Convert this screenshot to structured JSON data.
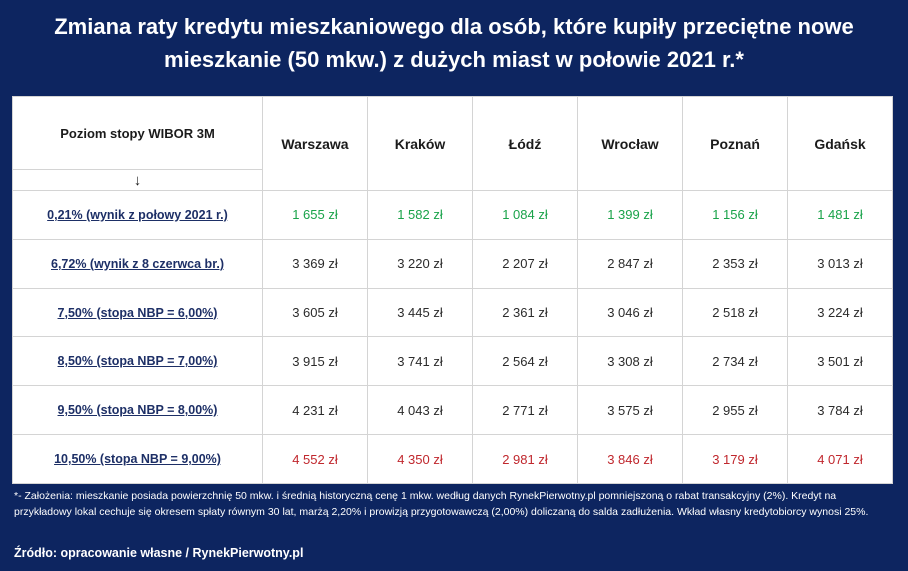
{
  "title": {
    "line1": "Zmiana raty kredytu mieszkaniowego dla osób, które kupiły przeciętne nowe",
    "line2": "mieszkanie (50 mkw.) z dużych miast w połowie 2021 r.*"
  },
  "table": {
    "row_header": "Poziom stopy WIBOR 3M",
    "row_header_arrow": "↓",
    "columns": [
      "Warszawa",
      "Kraków",
      "Łódź",
      "Wrocław",
      "Poznań",
      "Gdańsk"
    ],
    "rows": [
      {
        "label": "0,21% (wynik z połowy 2021 r.)",
        "values": [
          "1 655 zł",
          "1 582 zł",
          "1 084 zł",
          "1 399 zł",
          "1 156 zł",
          "1 481 zł"
        ],
        "color": "#1aa34a"
      },
      {
        "label": "6,72% (wynik z 8 czerwca br.)",
        "values": [
          "3 369 zł",
          "3 220 zł",
          "2 207 zł",
          "2 847 zł",
          "2 353 zł",
          "3 013 zł"
        ],
        "color": "#2b2b2b"
      },
      {
        "label": "7,50% (stopa NBP = 6,00%)",
        "values": [
          "3 605 zł",
          "3 445 zł",
          "2 361 zł",
          "3 046 zł",
          "2 518 zł",
          "3 224 zł"
        ],
        "color": "#2b2b2b"
      },
      {
        "label": "8,50% (stopa NBP = 7,00%)",
        "values": [
          "3 915 zł",
          "3 741 zł",
          "2 564 zł",
          "3 308 zł",
          "2 734 zł",
          "3 501 zł"
        ],
        "color": "#2b2b2b"
      },
      {
        "label": "9,50% (stopa NBP = 8,00%)",
        "values": [
          "4 231 zł",
          "4 043 zł",
          "2 771 zł",
          "3 575 zł",
          "2 955 zł",
          "3 784 zł"
        ],
        "color": "#2b2b2b"
      },
      {
        "label": "10,50% (stopa NBP = 9,00%)",
        "values": [
          "4 552 zł",
          "4 350 zł",
          "2 981 zł",
          "3 846 zł",
          "3 179 zł",
          "4 071 zł"
        ],
        "color": "#c0272d"
      }
    ]
  },
  "footnote": "*- Założenia: mieszkanie posiada powierzchnię 50 mkw. i średnią historyczną cenę 1 mkw. według danych RynekPierwotny.pl pomniejszoną o rabat transakcyjny (2%). Kredyt na przykładowy lokal cechuje się okresem spłaty równym 30 lat, marżą 2,20% i prowizją przygotowawczą (2,00%) doliczaną do salda zadłużenia. Wkład własny kredytobiorcy wynosi 25%.",
  "source": "Źródło: opracowanie własne / RynekPierwotny.pl",
  "colors": {
    "background": "#0d2560",
    "green": "#1aa34a",
    "red": "#c0272d",
    "label": "#1d2f66"
  }
}
